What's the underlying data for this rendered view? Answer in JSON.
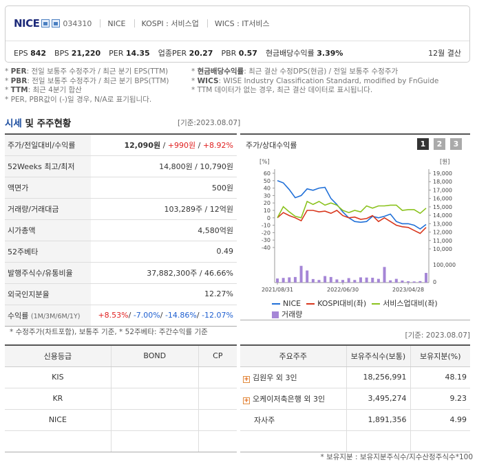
{
  "header": {
    "name": "NICE",
    "code": "034310",
    "meta": [
      "NICE",
      "KOSPI : 서비스업",
      "WICS : IT서비스"
    ],
    "indicators": [
      {
        "label": "EPS",
        "value": "842"
      },
      {
        "label": "BPS",
        "value": "21,220"
      },
      {
        "label": "PER",
        "value": "14.35"
      },
      {
        "label": "업종PER",
        "value": "20.27"
      },
      {
        "label": "PBR",
        "value": "0.57"
      },
      {
        "label": "현금배당수익률",
        "value": "3.39%"
      }
    ],
    "fiscal": "12월 결산"
  },
  "notes_left": [
    {
      "key": "PER",
      "text": ": 전일 보통주 수정주가 / 최근 분기 EPS(TTM)"
    },
    {
      "key": "PBR",
      "text": ": 전일 보통주 수정주가 / 최근 분기 BPS(TTM)"
    },
    {
      "key": "TTM",
      "text": ": 최근 4분기 합산"
    },
    {
      "key": "",
      "text": "PER, PBR값이 (-)일 경우, N/A로 표기됩니다."
    }
  ],
  "notes_right": [
    {
      "key": "현금배당수익률",
      "text": ": 최근 결산 수정DPS(현금) / 전일 보통주 수정주가"
    },
    {
      "key": "WICS",
      "text": ": WISE Industry Classification Standard, modified by FnGuide"
    },
    {
      "key": "",
      "text": "TTM 데이터가 없는 경우, 최근 결산 데이터로 표시됩니다."
    }
  ],
  "section": {
    "title_a": "시세",
    "title_b": " 및 주주현황",
    "date": "[기준:2023.08.07]"
  },
  "price_table": {
    "change_label": "주가/전일대비/수익률",
    "price": "12,090원",
    "change": "+990원",
    "rate": "+8.92%",
    "rows": [
      {
        "label": "52Weeks 최고/최저",
        "value": "14,800원 / 10,790원"
      },
      {
        "label": "액면가",
        "value": "500원"
      },
      {
        "label": "거래량/거래대금",
        "value": "103,289주 / 12억원"
      },
      {
        "label": "시가총액",
        "value": "4,580억원"
      },
      {
        "label": "52주베타",
        "value": "0.49"
      },
      {
        "label": "발행주식수/유통비율",
        "value": "37,882,300주 / 46.66%"
      },
      {
        "label": "외국인지분율",
        "value": "12.27%"
      }
    ],
    "returns_label": "수익률",
    "returns_period": "(1M/3M/6M/1Y)",
    "returns": [
      "+8.53%",
      "-7.00%",
      "-14.86%",
      "-12.07%"
    ],
    "note": "* 수정주가(차트포함), 보통주 기준, * 52주베타: 주간수익률 기준"
  },
  "chart_panel": {
    "title": "주가/상대수익률",
    "pages": [
      "1",
      "2",
      "3"
    ],
    "left_unit": "[%]",
    "right_unit": "[원]"
  },
  "chart_data": {
    "type": "line",
    "x": [
      "2021/08/31",
      "2021/09",
      "2021/10",
      "2021/11",
      "2021/12",
      "2022/01",
      "2022/02",
      "2022/03",
      "2022/04",
      "2022/05",
      "2022/06",
      "2022/06/30",
      "2022/07",
      "2022/08",
      "2022/09",
      "2022/10",
      "2022/11",
      "2022/12",
      "2023/01",
      "2023/02",
      "2023/03",
      "2023/04",
      "2023/04/28",
      "2023/06",
      "2023/07",
      "2023/08"
    ],
    "xticks": [
      "2021/08/31",
      "2022/06/30",
      "2023/04/28"
    ],
    "series": [
      {
        "name": "NICE",
        "color": "#1f6fd8",
        "axis": "left",
        "values": [
          50,
          47,
          38,
          27,
          30,
          39,
          37,
          40,
          41,
          26,
          18,
          8,
          0,
          -5,
          -6,
          -5,
          2,
          0,
          2,
          5,
          -5,
          -8,
          -8,
          -10,
          -15,
          -9
        ]
      },
      {
        "name": "KOSPI대비(좌)",
        "color": "#d8361c",
        "axis": "left",
        "values": [
          0,
          7,
          3,
          0,
          -4,
          10,
          10,
          8,
          9,
          6,
          10,
          3,
          0,
          1,
          -2,
          -1,
          3,
          -5,
          0,
          -5,
          -10,
          -12,
          -13,
          -17,
          -21,
          -13
        ]
      },
      {
        "name": "서비스업대비(좌)",
        "color": "#8ac21c",
        "axis": "left",
        "values": [
          0,
          15,
          8,
          2,
          0,
          22,
          18,
          22,
          17,
          20,
          17,
          10,
          7,
          10,
          8,
          16,
          13,
          16,
          16,
          17,
          17,
          10,
          11,
          11,
          6,
          13
        ]
      },
      {
        "name": "거래량",
        "color": "#a586d6",
        "axis": "volume",
        "values": [
          22000,
          25000,
          28000,
          30000,
          90000,
          65000,
          19000,
          14000,
          35000,
          30000,
          17000,
          14000,
          24000,
          14000,
          28000,
          27000,
          26000,
          20000,
          84000,
          12000,
          20000,
          11000,
          7000,
          6000,
          8000,
          52000
        ]
      }
    ],
    "ylim_left": [
      -40,
      60
    ],
    "yticks_left": [
      60,
      50,
      40,
      30,
      20,
      10,
      0,
      -10,
      -20,
      -30,
      -40
    ],
    "ylim_right": [
      10000,
      19000
    ],
    "yticks_right": [
      "19,000",
      "18,000",
      "17,000",
      "16,000",
      "15,000",
      "14,000",
      "13,000",
      "12,000",
      "11,000",
      "10,000"
    ],
    "volume_ticks": [
      "100,000",
      "0"
    ],
    "legend_placement": "bottom"
  },
  "credit_table": {
    "headers": [
      "신용등급",
      "BOND",
      "CP"
    ],
    "rows": [
      [
        "KIS",
        "",
        ""
      ],
      [
        "KR",
        "",
        ""
      ],
      [
        "NICE",
        "",
        ""
      ],
      [
        "",
        "",
        ""
      ]
    ]
  },
  "shareholder_table": {
    "date": "[기준: 2023.08.07]",
    "headers": [
      "주요주주",
      "보유주식수(보통)",
      "보유지분(%)"
    ],
    "rows": [
      {
        "name": "김원우 외 3인",
        "shares": "18,256,991",
        "pct": "48.19",
        "expand": true
      },
      {
        "name": "오케이저축은행 외 3인",
        "shares": "3,495,274",
        "pct": "9.23",
        "expand": true
      },
      {
        "name": "자사주",
        "shares": "1,891,356",
        "pct": "4.99",
        "expand": false
      },
      {
        "name": "",
        "shares": "",
        "pct": "",
        "expand": false
      }
    ],
    "note": "* 보유지분 : 보유지분주식수/지수산정주식수*100"
  }
}
